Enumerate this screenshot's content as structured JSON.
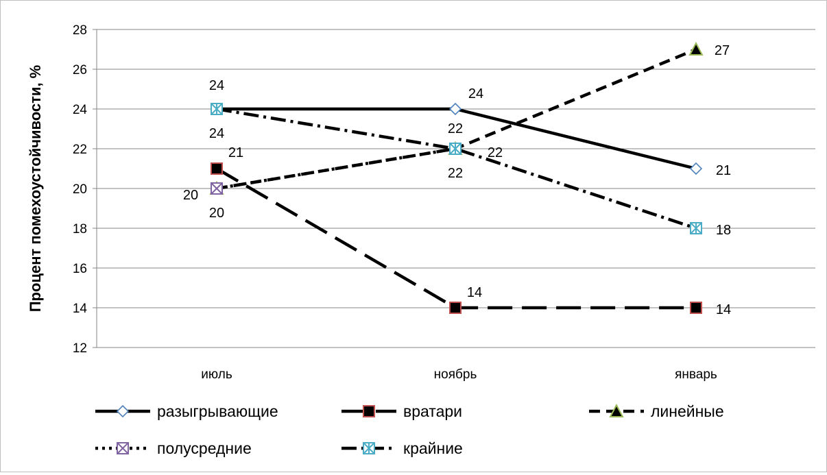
{
  "chart_data": {
    "type": "line",
    "ylabel": "Процент помехоустойчивости, %",
    "xlabel": "",
    "categories": [
      "июль",
      "ноябрь",
      "январь"
    ],
    "ylim": [
      12,
      28
    ],
    "yticks": [
      12,
      14,
      16,
      18,
      20,
      22,
      24,
      26,
      28
    ],
    "grid": "horizontal",
    "legend_position": "bottom",
    "series": [
      {
        "name": "разыгрывающие",
        "values": [
          24,
          24,
          21
        ],
        "dash": "solid",
        "marker": "diamond",
        "marker_fill": "#ffffff",
        "marker_stroke": "#4f81bd",
        "labels": [
          "",
          "24",
          "21"
        ]
      },
      {
        "name": "вратари",
        "values": [
          21,
          14,
          14
        ],
        "dash": "long-dash",
        "marker": "square",
        "marker_fill": "#000000",
        "marker_stroke": "#c0504d",
        "labels": [
          "21",
          "14",
          "14"
        ]
      },
      {
        "name": "линейные",
        "values": [
          20,
          22,
          27
        ],
        "dash": "dash",
        "marker": "triangle",
        "marker_fill": "#000000",
        "marker_stroke": "#9bbb59",
        "labels": [
          "20",
          "22",
          "27"
        ]
      },
      {
        "name": "полусредние",
        "values": [
          20,
          22,
          null
        ],
        "dash": "dot",
        "marker": "x-square",
        "marker_fill": "#ffffff",
        "marker_stroke": "#8064a2",
        "labels": [
          "20",
          "22",
          ""
        ]
      },
      {
        "name": "крайние",
        "values": [
          24,
          22,
          18
        ],
        "dash": "dash-dot",
        "marker": "star-square",
        "marker_fill": "#ffffff",
        "marker_stroke": "#4bacc6",
        "labels": [
          "24",
          "22",
          "18"
        ]
      }
    ],
    "extra_labels": [
      {
        "series": "разыгрывающие",
        "index": 0,
        "text": "24"
      }
    ]
  }
}
